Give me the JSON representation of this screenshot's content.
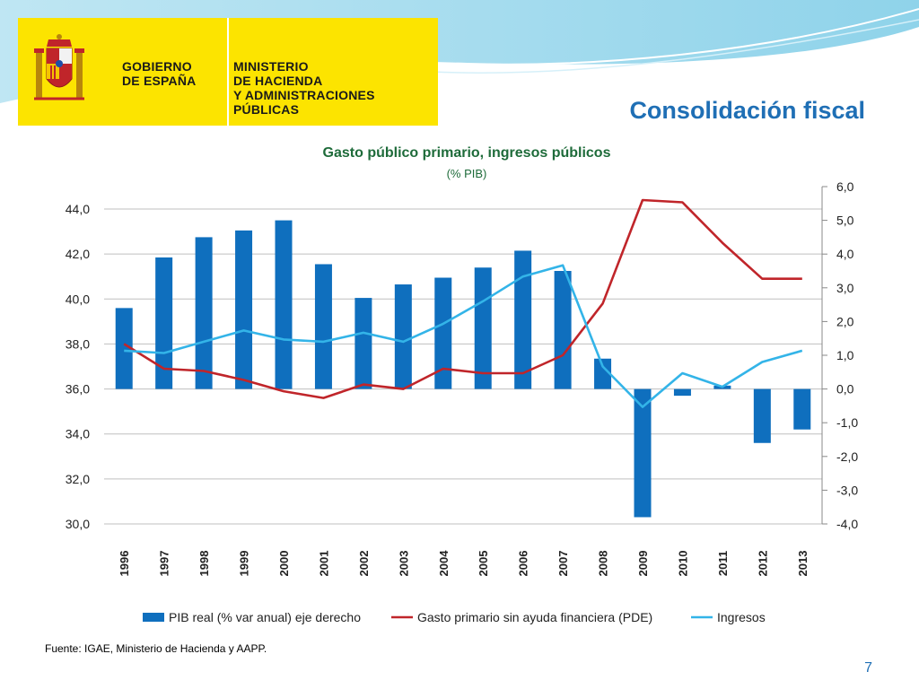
{
  "slide": {
    "title": "Consolidación fiscal",
    "page_number": "7",
    "source": "Fuente: IGAE, Ministerio de Hacienda y AAPP."
  },
  "logo": {
    "left_line1": "GOBIERNO",
    "left_line2": "DE ESPAÑA",
    "right_line1": "MINISTERIO",
    "right_line2": "DE HACIENDA",
    "right_line3": "Y ADMINISTRACIONES PÚBLICAS"
  },
  "colors": {
    "accent": "#1f6fb5",
    "logo_yellow": "#fce400",
    "bar": "#0f6fbe",
    "red_line": "#c0252a",
    "cyan_line": "#33b4e8",
    "title_green": "#1e6b3a"
  },
  "chart_data": {
    "type": "bar",
    "title": "Gasto público primario, ingresos  públicos",
    "subtitle": "(% PIB)",
    "categories": [
      "1996",
      "1997",
      "1998",
      "1999",
      "2000",
      "2001",
      "2002",
      "2003",
      "2004",
      "2005",
      "2006",
      "2007",
      "2008",
      "2009",
      "2010",
      "2011",
      "2012",
      "2013"
    ],
    "left_axis": {
      "ylim": [
        30,
        44
      ],
      "ticks": [
        "30,0",
        "32,0",
        "34,0",
        "36,0",
        "38,0",
        "40,0",
        "42,0",
        "44,0"
      ]
    },
    "right_axis": {
      "ylim": [
        -4,
        6
      ],
      "ticks": [
        "-4,0",
        "-3,0",
        "-2,0",
        "-1,0",
        "0,0",
        "1,0",
        "2,0",
        "3,0",
        "4,0",
        "5,0",
        "6,0"
      ]
    },
    "grid": true,
    "legend_position": "bottom",
    "series": [
      {
        "name": "PIB real (% var anual) eje derecho",
        "type": "bar",
        "axis": "right",
        "values": [
          2.4,
          3.9,
          4.5,
          4.7,
          5.0,
          3.7,
          2.7,
          3.1,
          3.3,
          3.6,
          4.1,
          3.5,
          0.9,
          -3.8,
          -0.2,
          0.1,
          -1.6,
          -1.2
        ]
      },
      {
        "name": "Gasto primario sin ayuda financiera (PDE)",
        "type": "line",
        "axis": "left",
        "values": [
          38.0,
          36.9,
          36.8,
          36.4,
          35.9,
          35.6,
          36.2,
          36.0,
          36.9,
          36.7,
          36.7,
          37.5,
          39.8,
          44.4,
          44.3,
          42.5,
          40.9,
          40.9
        ]
      },
      {
        "name": "Ingresos",
        "type": "line",
        "axis": "left",
        "values": [
          37.7,
          37.6,
          38.1,
          38.6,
          38.2,
          38.1,
          38.5,
          38.1,
          38.9,
          39.9,
          41.0,
          41.5,
          37.0,
          35.2,
          36.7,
          36.1,
          37.2,
          37.7
        ]
      }
    ]
  }
}
